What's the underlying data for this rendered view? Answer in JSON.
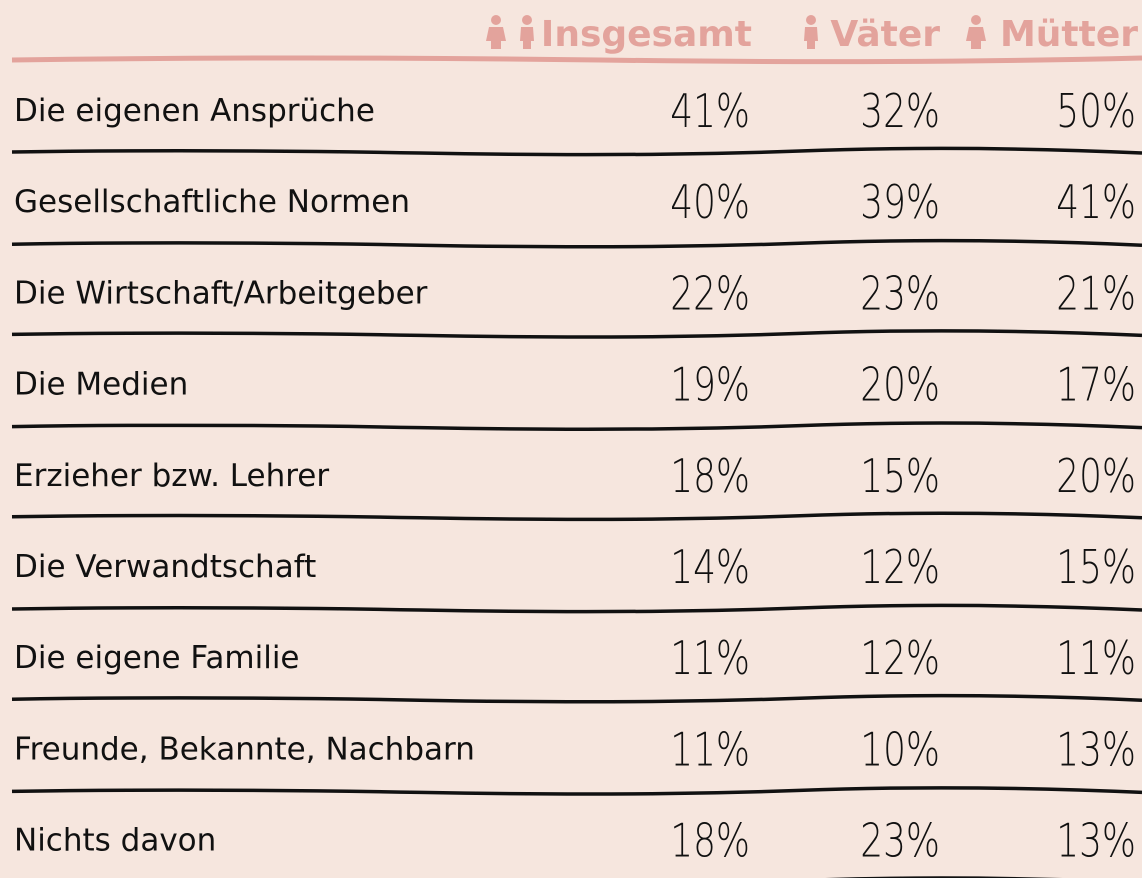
{
  "table": {
    "columns": [
      "Insgesamt",
      "Väter",
      "Mütter"
    ],
    "rows": [
      [
        "Die eigenen Ansprüche",
        "41%",
        "32%",
        "50%"
      ],
      [
        "Gesellschaftliche Normen",
        "40%",
        "39%",
        "41%"
      ],
      [
        "Die Wirtschaft/Arbeitgeber",
        "22%",
        "23%",
        "21%"
      ],
      [
        "Die Medien",
        "19%",
        "20%",
        "17%"
      ],
      [
        "Erzieher bzw. Lehrer",
        "18%",
        "15%",
        "20%"
      ],
      [
        "Die Verwandtschaft",
        "14%",
        "12%",
        "15%"
      ],
      [
        "Die eigene Familie",
        "11%",
        "12%",
        "11%"
      ],
      [
        "Freunde, Bekannte, Nachbarn",
        "11%",
        "10%",
        "13%"
      ],
      [
        "Nichts davon",
        "18%",
        "23%",
        "13%"
      ]
    ]
  }
}
